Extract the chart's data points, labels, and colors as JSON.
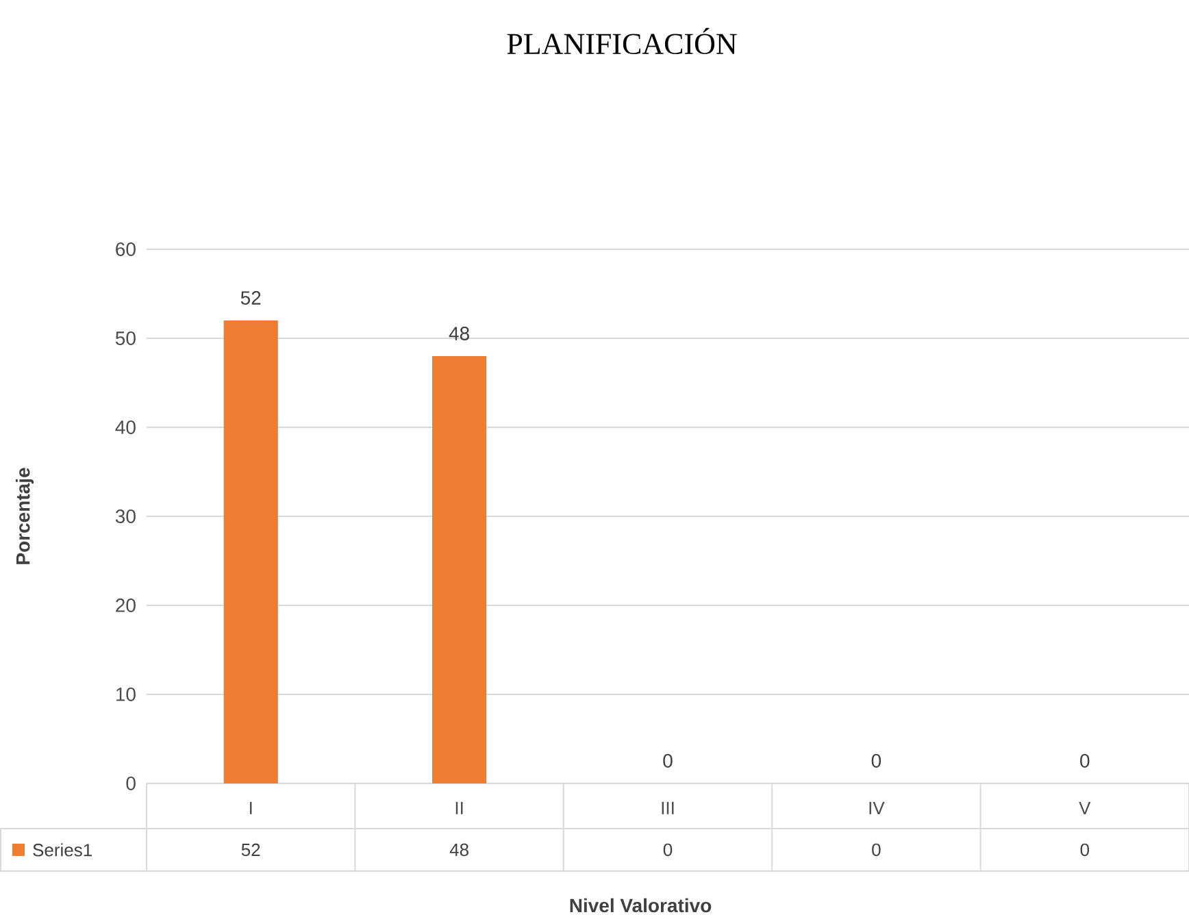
{
  "chart_data": {
    "type": "bar",
    "title": "PLANIFICACIÓN",
    "xlabel": "Nivel Valorativo",
    "ylabel": "Porcentaje",
    "categories": [
      "I",
      "II",
      "III",
      "IV",
      "V"
    ],
    "series": [
      {
        "name": "Series1",
        "color": "#ed7d31",
        "values": [
          52,
          48,
          0,
          0,
          0
        ],
        "value_labels": [
          "52",
          "48",
          "0",
          "0",
          "0"
        ]
      }
    ],
    "ylim": [
      0,
      60
    ],
    "yticks": [
      0,
      10,
      20,
      30,
      40,
      50,
      60
    ],
    "grid": true,
    "data_labels": true
  }
}
